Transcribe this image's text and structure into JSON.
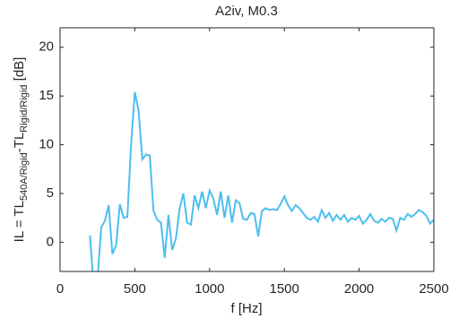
{
  "chart_data": {
    "type": "line",
    "title": "A2iv, M0.3",
    "x_label": "f [Hz]",
    "y_label": [
      "IL  = TL",
      "540A/Rigid",
      "-TL",
      "Rigid/Rigid",
      " [dB]"
    ],
    "x": [
      200,
      225,
      250,
      275,
      300,
      325,
      350,
      375,
      400,
      425,
      450,
      475,
      500,
      525,
      550,
      575,
      600,
      625,
      650,
      675,
      700,
      725,
      750,
      775,
      800,
      825,
      850,
      875,
      900,
      925,
      950,
      975,
      1000,
      1025,
      1050,
      1075,
      1100,
      1125,
      1150,
      1175,
      1200,
      1225,
      1250,
      1275,
      1300,
      1325,
      1350,
      1375,
      1400,
      1425,
      1450,
      1475,
      1500,
      1525,
      1550,
      1575,
      1600,
      1625,
      1650,
      1675,
      1700,
      1725,
      1750,
      1775,
      1800,
      1825,
      1850,
      1875,
      1900,
      1925,
      1950,
      1975,
      2000,
      2025,
      2050,
      2075,
      2100,
      2125,
      2150,
      2175,
      2200,
      2225,
      2250,
      2275,
      2300,
      2325,
      2350,
      2375,
      2400,
      2425,
      2450,
      2475,
      2500
    ],
    "series": [
      {
        "color": "#4dbeee",
        "values": [
          0.7,
          -4.5,
          -4,
          1.5,
          2.2,
          3.8,
          -1.2,
          -0.3,
          3.9,
          2.5,
          2.6,
          10,
          15.4,
          13.5,
          8.5,
          9.0,
          8.9,
          3.2,
          2.3,
          2.0,
          -1.6,
          2.8,
          -0.8,
          0.4,
          3.5,
          5.0,
          2.0,
          1.8,
          4.8,
          3.5,
          5.2,
          3.5,
          5.3,
          4.5,
          2.8,
          5.2,
          2.5,
          4.8,
          2.0,
          4.3,
          4.0,
          2.4,
          2.3,
          3.0,
          2.9,
          0.6,
          3.2,
          3.5,
          3.3,
          3.4,
          3.3,
          3.9,
          4.7,
          3.8,
          3.2,
          3.8,
          3.5,
          3.0,
          2.5,
          2.3,
          2.6,
          2.1,
          3.3,
          2.5,
          3.0,
          2.2,
          2.8,
          2.3,
          2.8,
          2.1,
          2.5,
          2.3,
          2.7,
          1.9,
          2.3,
          2.9,
          2.2,
          2.0,
          2.4,
          2.1,
          2.5,
          2.4,
          1.2,
          2.5,
          2.3,
          2.9,
          2.6,
          2.9,
          3.3,
          3.1,
          2.7,
          1.9,
          2.3
        ]
      }
    ],
    "xlim": [
      0,
      2500
    ],
    "ylim": [
      -3,
      22
    ],
    "xticks": [
      0,
      500,
      1000,
      1500,
      2000,
      2500
    ],
    "yticks": [
      0,
      5,
      10,
      15,
      20
    ],
    "grid": false
  }
}
